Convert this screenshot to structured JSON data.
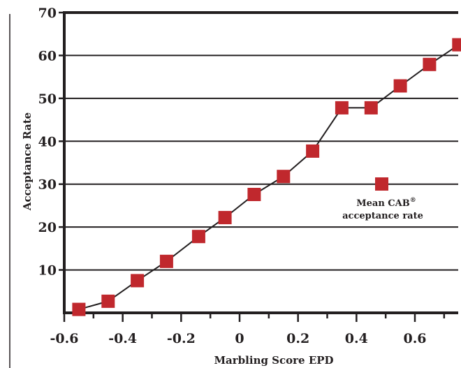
{
  "chart_data": {
    "type": "line",
    "xlabel": "Marbling Score EPD",
    "ylabel": "Acceptance Rate",
    "xlim": [
      -0.6,
      0.75
    ],
    "ylim": [
      0,
      70
    ],
    "x_ticks": [
      -0.6,
      -0.4,
      -0.2,
      0,
      0.2,
      0.4,
      0.6
    ],
    "x_tick_labels": [
      "-0.6",
      "-0.4",
      "-0.2",
      "0",
      "0.2",
      "0.4",
      "0.6"
    ],
    "y_ticks": [
      10,
      20,
      30,
      40,
      50,
      60,
      70
    ],
    "y_tick_labels": [
      "10",
      "20",
      "30",
      "40",
      "50",
      "60",
      "70"
    ],
    "grid": "horizontal",
    "legend": {
      "label_line1": "Mean CAB",
      "label_sup": "®",
      "label_line2": "acceptance rate",
      "placement": "center-right"
    },
    "series": [
      {
        "marker": "square",
        "marker_color": "#c0282d",
        "line_color": "#231f20",
        "x": [
          -0.55,
          -0.45,
          -0.35,
          -0.25,
          -0.14,
          -0.05,
          0.05,
          0.15,
          0.25,
          0.35,
          0.45,
          0.55,
          0.65,
          0.75
        ],
        "y": [
          0.8,
          2.7,
          7.5,
          12.0,
          17.8,
          22.2,
          27.6,
          31.8,
          37.7,
          47.8,
          47.8,
          52.9,
          57.9,
          62.5
        ]
      }
    ]
  }
}
